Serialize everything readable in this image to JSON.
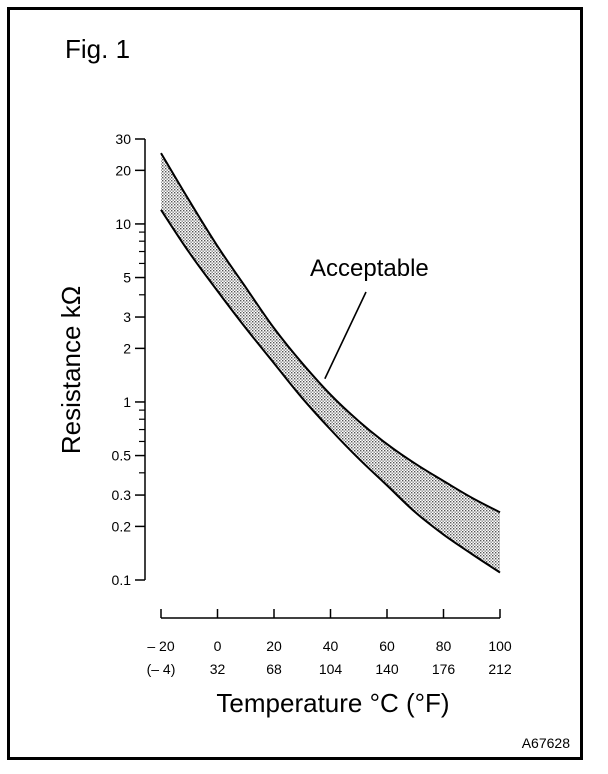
{
  "figure": {
    "title": "Fig. 1",
    "code": "A67628"
  },
  "chart_data": {
    "type": "area",
    "title": "",
    "xlabel": "Temperature °C (°F)",
    "ylabel": "Resistance kΩ",
    "y_scale": "log",
    "xlim": [
      -20,
      100
    ],
    "ylim": [
      0.1,
      30
    ],
    "x_ticks": [
      {
        "c": "– 20",
        "f": "(– 4)"
      },
      {
        "c": "0",
        "f": "32"
      },
      {
        "c": "20",
        "f": "68"
      },
      {
        "c": "40",
        "f": "104"
      },
      {
        "c": "60",
        "f": "140"
      },
      {
        "c": "80",
        "f": "176"
      },
      {
        "c": "100",
        "f": "212"
      }
    ],
    "x_tick_values": [
      -20,
      0,
      20,
      40,
      60,
      80,
      100
    ],
    "y_ticks": [
      {
        "v": 30,
        "label": "30"
      },
      {
        "v": 20,
        "label": "20"
      },
      {
        "v": 10,
        "label": "10"
      },
      {
        "v": 5,
        "label": "5"
      },
      {
        "v": 3,
        "label": "3"
      },
      {
        "v": 2,
        "label": "2"
      },
      {
        "v": 1,
        "label": "1"
      },
      {
        "v": 0.5,
        "label": "0.5"
      },
      {
        "v": 0.3,
        "label": "0.3"
      },
      {
        "v": 0.2,
        "label": "0.2"
      },
      {
        "v": 0.1,
        "label": "0.1"
      }
    ],
    "y_minor_ticks": [
      9,
      8,
      7,
      6,
      4,
      0.9,
      0.8,
      0.7,
      0.6,
      0.4
    ],
    "series": [
      {
        "role": "upper",
        "x": [
          -20,
          -10,
          0,
          10,
          20,
          30,
          40,
          50,
          60,
          70,
          80,
          90,
          100
        ],
        "values": [
          25,
          13.5,
          7.5,
          4.4,
          2.6,
          1.65,
          1.1,
          0.78,
          0.58,
          0.45,
          0.36,
          0.29,
          0.24
        ]
      },
      {
        "role": "lower",
        "x": [
          -20,
          -10,
          0,
          10,
          20,
          30,
          40,
          50,
          60,
          70,
          80,
          90,
          100
        ],
        "values": [
          12,
          6.9,
          4.2,
          2.6,
          1.65,
          1.05,
          0.7,
          0.48,
          0.34,
          0.24,
          0.18,
          0.14,
          0.11
        ]
      }
    ],
    "annotation": {
      "text": "Acceptable",
      "points_to": {
        "x": 38,
        "y": 1.35
      }
    },
    "grid": false,
    "band_fill": "#b8b8b8"
  }
}
